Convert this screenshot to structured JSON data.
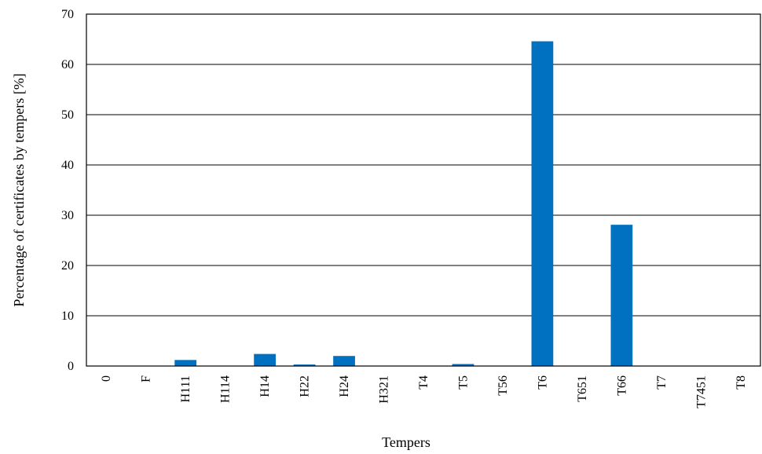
{
  "chart_data": {
    "type": "bar",
    "title": "",
    "xlabel": "Tempers",
    "ylabel": "Percentage of certificates by tempers [%]",
    "ylim": [
      0,
      70
    ],
    "yticks": [
      0,
      10,
      20,
      30,
      40,
      50,
      60,
      70
    ],
    "grid": true,
    "categories": [
      "0",
      "F",
      "H111",
      "H114",
      "H14",
      "H22",
      "H24",
      "H321",
      "T4",
      "T5",
      "T56",
      "T6",
      "T651",
      "T66",
      "T7",
      "T7451",
      "T8"
    ],
    "values": [
      0,
      0,
      1.2,
      0,
      2.4,
      0.3,
      2.0,
      0,
      0,
      0.4,
      0,
      64.6,
      0,
      28.1,
      0,
      0,
      0
    ],
    "bar_color": "#0070C0"
  }
}
